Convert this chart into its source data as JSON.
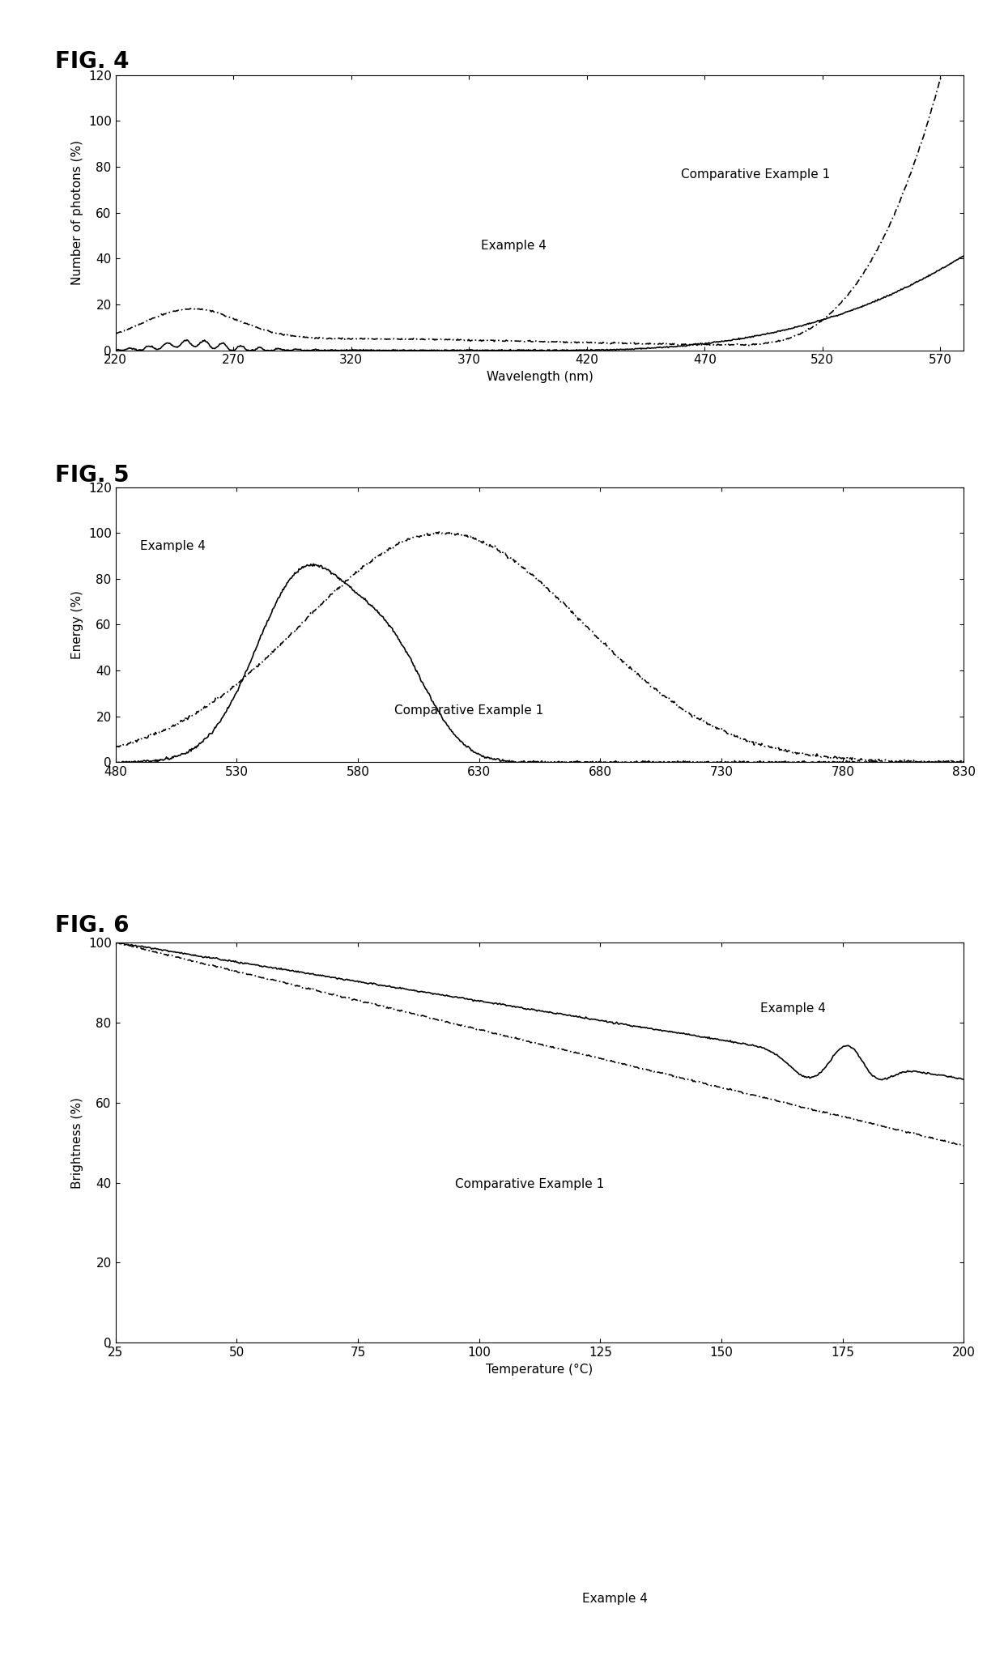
{
  "fig4": {
    "title": "FIG. 4",
    "xlabel": "Wavelength (nm)",
    "ylabel": "Number of photons (%)",
    "xlim": [
      220,
      580
    ],
    "ylim": [
      0,
      120
    ],
    "xticks": [
      220,
      270,
      320,
      370,
      420,
      470,
      520,
      570
    ],
    "yticks": [
      0,
      20,
      40,
      60,
      80,
      100,
      120
    ],
    "label_example4": "Example 4",
    "label_comp1": "Comparative Example 1",
    "ann_ex4_x": 375,
    "ann_ex4_y": 44,
    "ann_comp1_x": 460,
    "ann_comp1_y": 75
  },
  "fig5": {
    "title": "FIG. 5",
    "xlabel": "",
    "ylabel": "Energy (%)",
    "xlim": [
      480,
      830
    ],
    "ylim": [
      0,
      120
    ],
    "xticks": [
      480,
      530,
      580,
      630,
      680,
      730,
      780,
      830
    ],
    "yticks": [
      0,
      20,
      40,
      60,
      80,
      100,
      120
    ],
    "label_example4": "Example 4",
    "label_comp1": "Comparative Example 1",
    "ann_ex4_x": 490,
    "ann_ex4_y": 97,
    "ann_comp1_x": 595,
    "ann_comp1_y": 20
  },
  "fig6": {
    "title": "FIG. 6",
    "xlabel": "Temperature (°C)",
    "ylabel": "Brightness (%)",
    "xlim": [
      25,
      200
    ],
    "ylim": [
      0,
      100
    ],
    "xticks": [
      25,
      50,
      75,
      100,
      125,
      150,
      175,
      200
    ],
    "yticks": [
      0,
      20,
      40,
      60,
      80,
      100
    ],
    "label_example4": "Example 4",
    "label_comp1": "Comparative Example 1",
    "ann_ex4_x": 158,
    "ann_ex4_y": 82,
    "ann_comp1_x": 95,
    "ann_comp1_y": 38
  },
  "legend_note": "Example 4",
  "bg_color": "#ffffff",
  "title_fontsize": 20,
  "label_fontsize": 11,
  "tick_fontsize": 11,
  "annot_fontsize": 11
}
